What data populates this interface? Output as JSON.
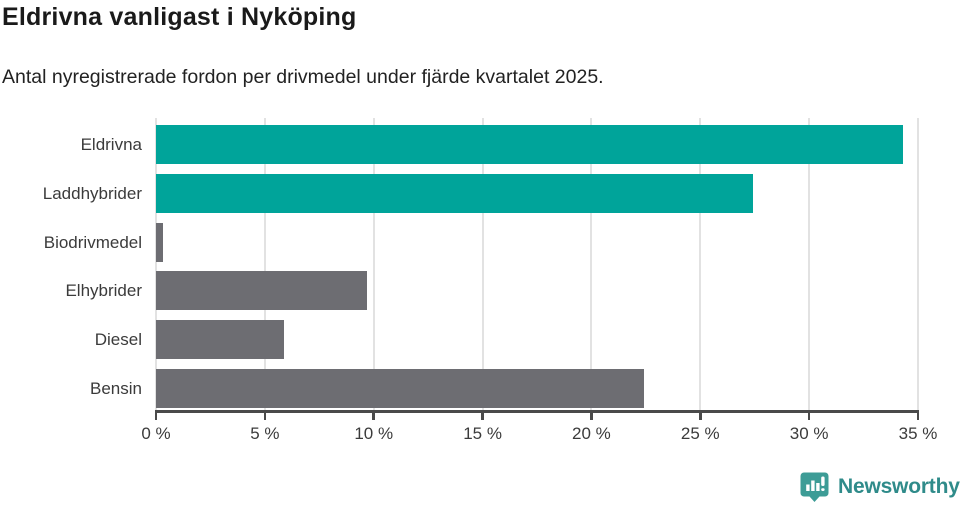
{
  "header": {
    "title": "Eldrivna vanligast i Nyköping",
    "subtitle": "Antal nyregistrerade fordon per drivmedel under fjärde kvartalet 2025."
  },
  "chart_data": {
    "type": "bar",
    "orientation": "horizontal",
    "title": "Eldrivna vanligast i Nyköping",
    "subtitle": "Antal nyregistrerade fordon per drivmedel under fjärde kvartalet 2025.",
    "categories": [
      "Eldrivna",
      "Laddhybrider",
      "Biodrivmedel",
      "Elhybrider",
      "Diesel",
      "Bensin"
    ],
    "values": [
      34.3,
      27.4,
      0.3,
      9.7,
      5.9,
      22.4
    ],
    "unit": "%",
    "bar_colors": [
      "#00a49a",
      "#00a49a",
      "#6d6d72",
      "#6d6d72",
      "#6d6d72",
      "#6d6d72"
    ],
    "xlabel": "",
    "ylabel": "",
    "xlim": [
      0,
      35
    ],
    "x_ticks": [
      0,
      5,
      10,
      15,
      20,
      25,
      30,
      35
    ],
    "x_tick_labels": [
      "0 %",
      "5 %",
      "10 %",
      "15 %",
      "20 %",
      "25 %",
      "30 %",
      "35 %"
    ],
    "grid": "vertical-gridlines-on",
    "legend": "none"
  },
  "colors": {
    "accent_teal": "#00a49a",
    "neutral_gray": "#6d6d72",
    "axis": "#4a4a4a",
    "gridline": "#e2e2e2",
    "label_text": "#3b3b3b",
    "logo_teal": "#2f8b8a",
    "logo_icon_teal": "#3d9c96"
  },
  "footer": {
    "brand": "Newsworthy"
  }
}
